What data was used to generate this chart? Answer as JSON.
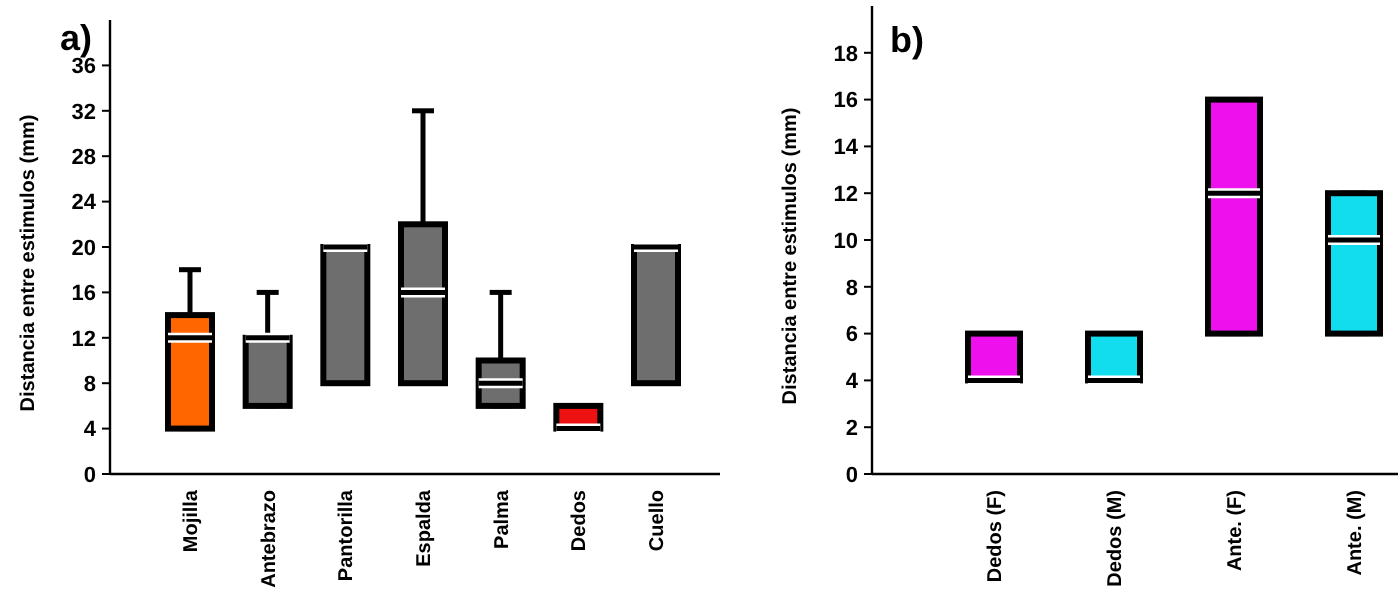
{
  "chart_data": [
    {
      "type": "box",
      "title": "a)",
      "ylabel": "Distancia entre estimulos (mm)",
      "categories": [
        "Mojilla",
        "Antebrazo",
        "Pantorilla",
        "Espalda",
        "Palma",
        "Dedos",
        "Cuello"
      ],
      "ylim": [
        0,
        40
      ],
      "yticks": [
        0,
        4,
        8,
        12,
        16,
        20,
        24,
        28,
        32,
        36
      ],
      "grid": false,
      "colors": [
        "#ff6600",
        "#6e6e6e",
        "#6e6e6e",
        "#6e6e6e",
        "#6e6e6e",
        "#ee1111",
        "#6e6e6e"
      ],
      "boxes": [
        {
          "low": 4,
          "q1": 4,
          "median": 12,
          "q3": 14,
          "high": 18
        },
        {
          "low": 6,
          "q1": 6,
          "median": 12,
          "q3": 12,
          "high": 16
        },
        {
          "low": 8,
          "q1": 8,
          "median": 20,
          "q3": 20,
          "high": 20
        },
        {
          "low": 8,
          "q1": 8,
          "median": 16,
          "q3": 22,
          "high": 32
        },
        {
          "low": 6,
          "q1": 6,
          "median": 8,
          "q3": 10,
          "high": 16
        },
        {
          "low": 4,
          "q1": 4,
          "median": 4,
          "q3": 6,
          "high": 6
        },
        {
          "low": 8,
          "q1": 8,
          "median": 20,
          "q3": 20,
          "high": 20
        }
      ]
    },
    {
      "type": "box",
      "title": "b)",
      "ylabel": "Distancia entre estimulos (mm)",
      "categories": [
        "Dedos (F)",
        "Dedos (M)",
        "Ante. (F)",
        "Ante. (M)"
      ],
      "ylim": [
        0,
        20
      ],
      "yticks": [
        0,
        2,
        4,
        6,
        8,
        10,
        12,
        14,
        16,
        18
      ],
      "grid": false,
      "colors": [
        "#ee11ee",
        "#11ddee",
        "#ee11ee",
        "#11ddee"
      ],
      "boxes": [
        {
          "low": 4,
          "q1": 4,
          "median": 4,
          "q3": 6,
          "high": 6
        },
        {
          "low": 4,
          "q1": 4,
          "median": 4,
          "q3": 6,
          "high": 6
        },
        {
          "low": 6,
          "q1": 6,
          "median": 12,
          "q3": 16,
          "high": 16
        },
        {
          "low": 6,
          "q1": 6,
          "median": 10,
          "q3": 12,
          "high": 12
        }
      ]
    }
  ]
}
